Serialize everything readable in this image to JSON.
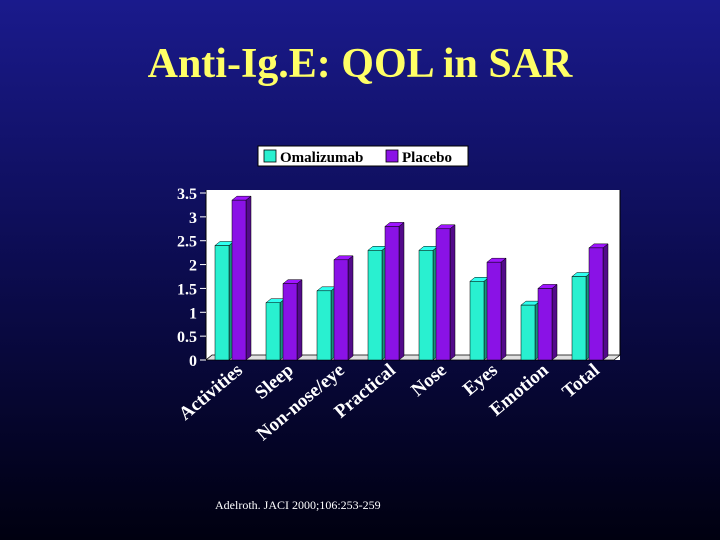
{
  "slide": {
    "title": "Anti-Ig.E: QOL in SAR",
    "citation": "Adelroth.  JACI 2000;106:253-259"
  },
  "colors": {
    "omalizumab": "#29f0d0",
    "placebo": "#8a12e6",
    "title": "#ffff66",
    "chart_bg": "#ffffff"
  },
  "chart_data": {
    "type": "bar",
    "title": "",
    "xlabel": "",
    "ylabel": "",
    "ylim": [
      0,
      3.5
    ],
    "yticks": [
      "0",
      "0.5",
      "1",
      "1.5",
      "2",
      "2.5",
      "3",
      "3.5"
    ],
    "categories": [
      "Activities",
      "Sleep",
      "Non-nose/eye",
      "Practical",
      "Nose",
      "Eyes",
      "Emotion",
      "Total"
    ],
    "series": [
      {
        "name": "Omalizumab",
        "values": [
          2.4,
          1.2,
          1.45,
          2.3,
          2.3,
          1.65,
          1.15,
          1.75
        ]
      },
      {
        "name": "Placebo",
        "values": [
          3.35,
          1.6,
          2.1,
          2.8,
          2.75,
          2.05,
          1.5,
          2.35
        ]
      }
    ],
    "legend": "top-center",
    "grid": false
  }
}
